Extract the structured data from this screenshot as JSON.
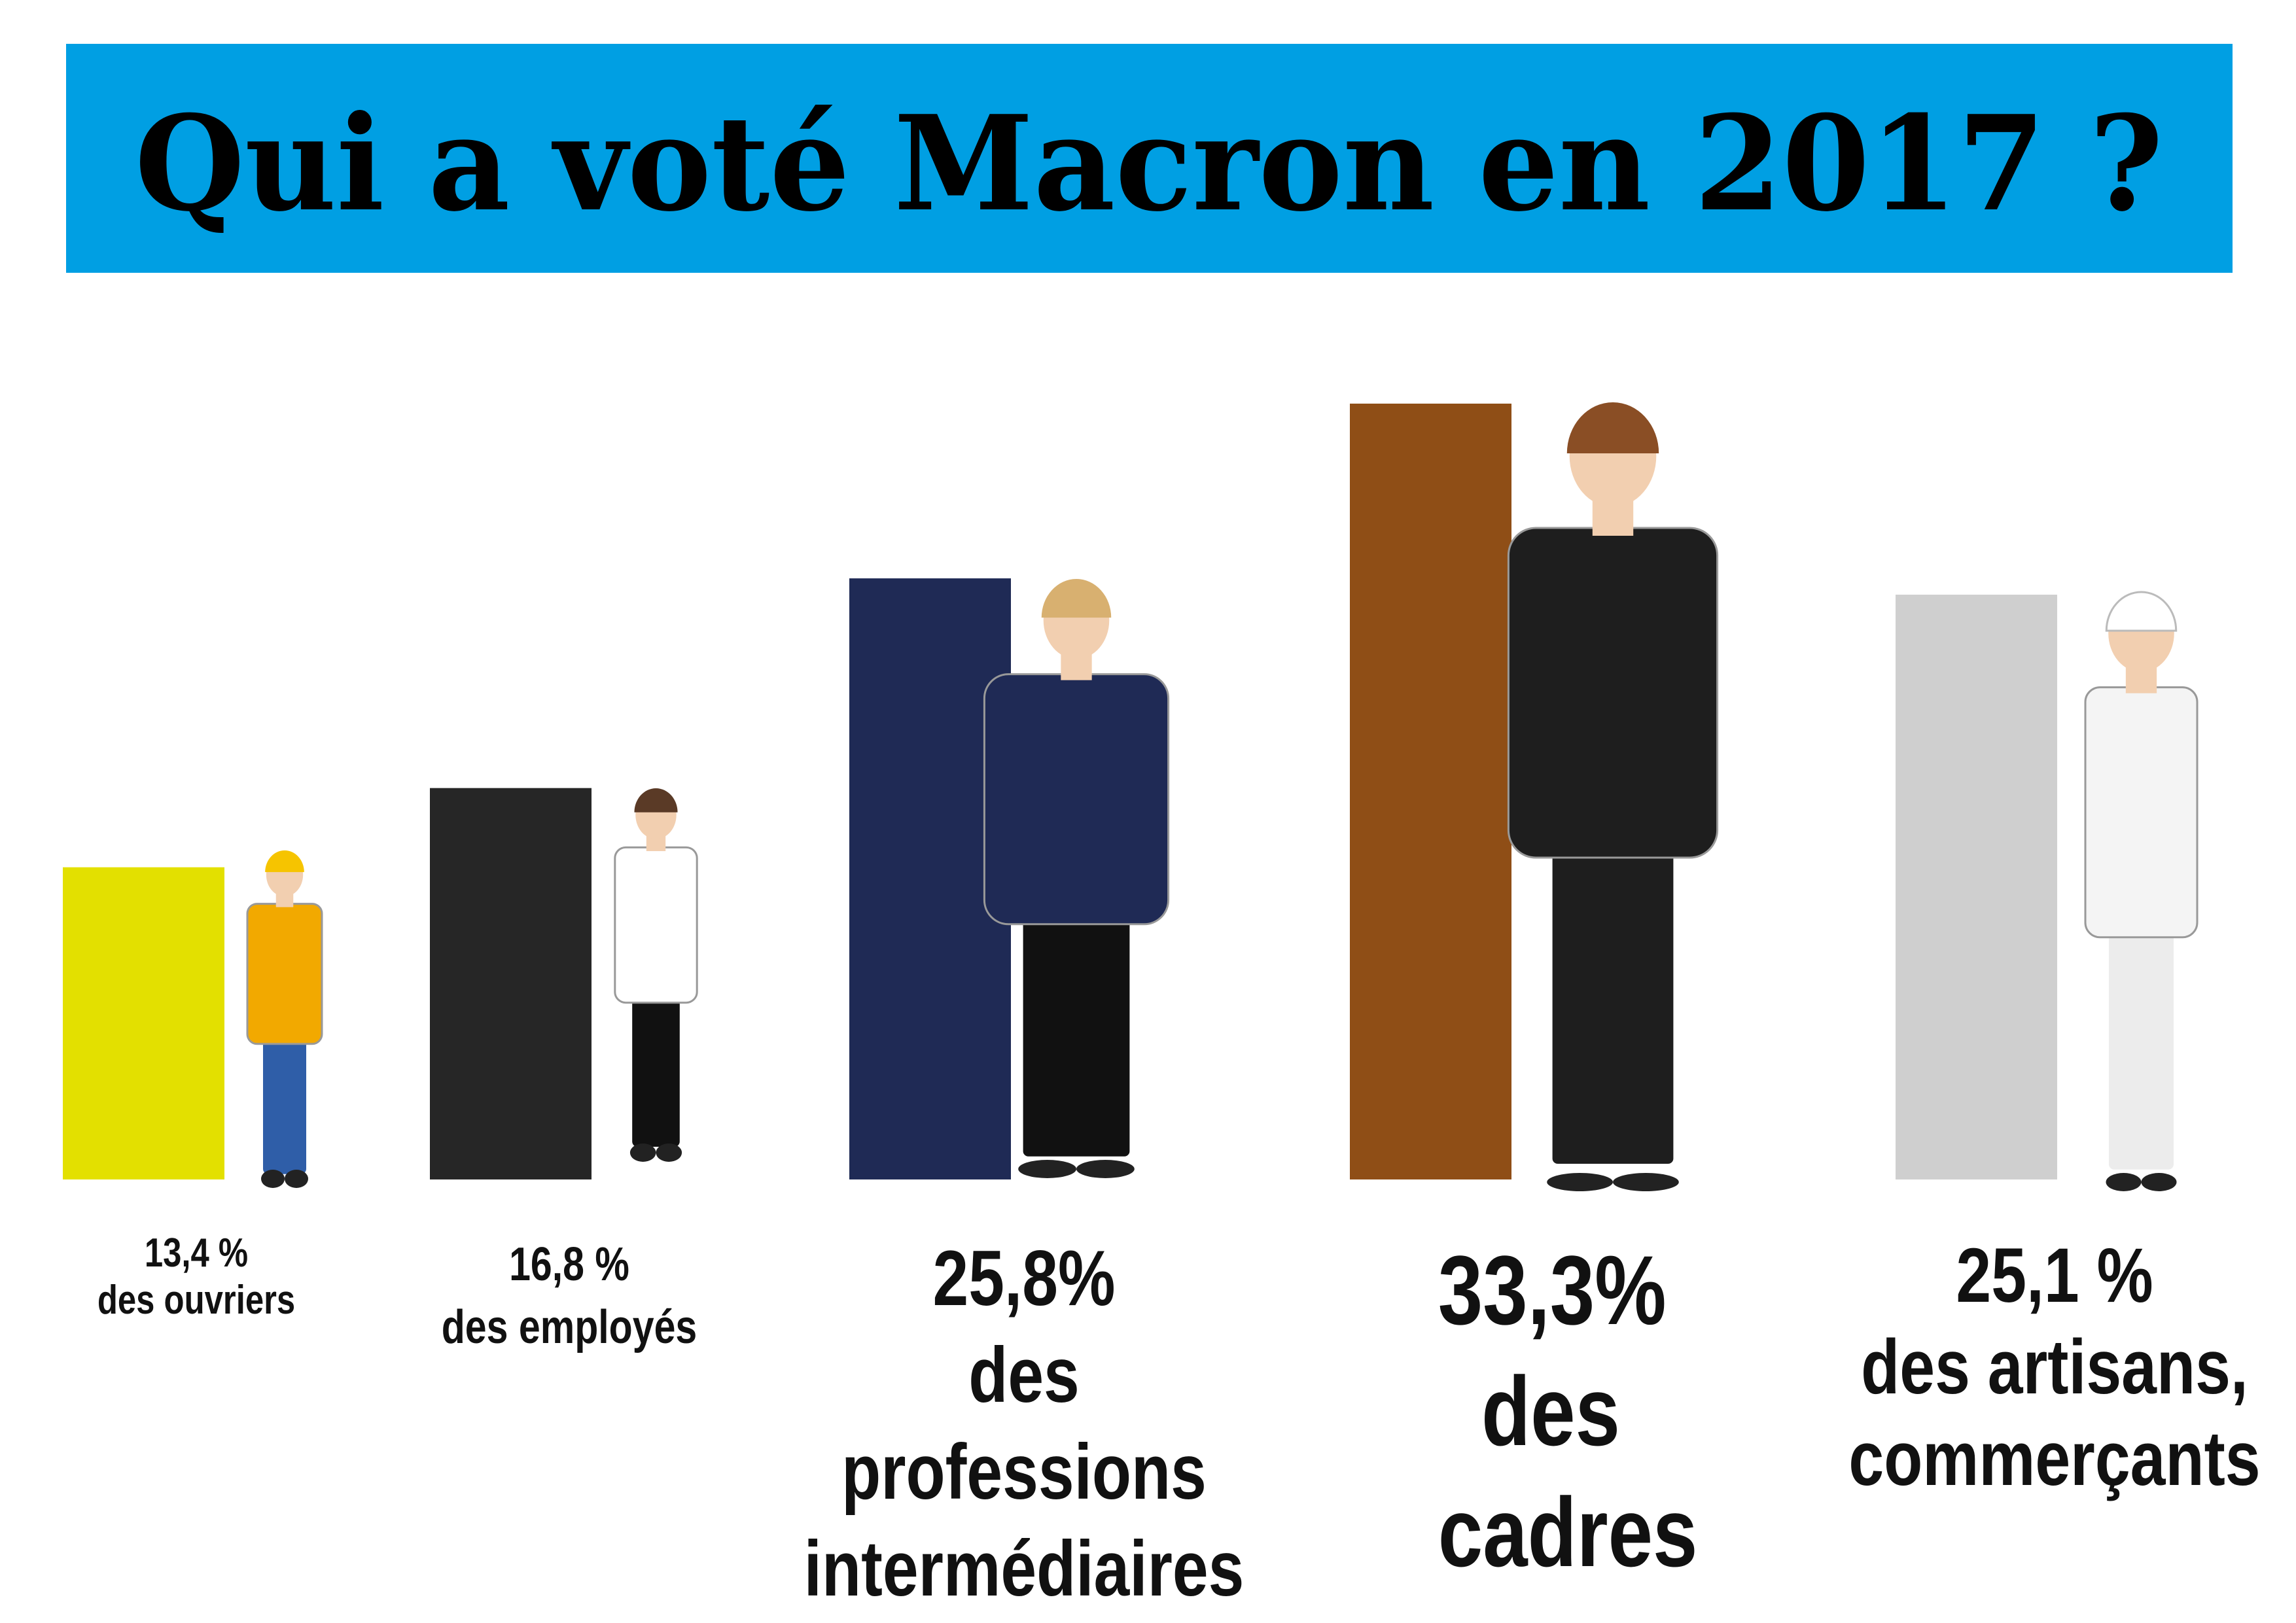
{
  "chart_data": {
    "type": "bar",
    "title": "Qui a voté Macron en 2017 ?",
    "categories": [
      "des ouvriers",
      "des employés",
      "des professions intermédiaires",
      "des cadres",
      "des artisans, commerçants"
    ],
    "values": [
      13.4,
      16.8,
      25.8,
      33.3,
      25.1
    ],
    "value_labels": [
      "13,4 %",
      "16,8 %",
      "25,8%",
      "33,3%",
      "25,1 %"
    ],
    "colors": [
      "#e3e000",
      "#262626",
      "#1f2a55",
      "#8f4e16",
      "#cfcfcf"
    ]
  }
}
